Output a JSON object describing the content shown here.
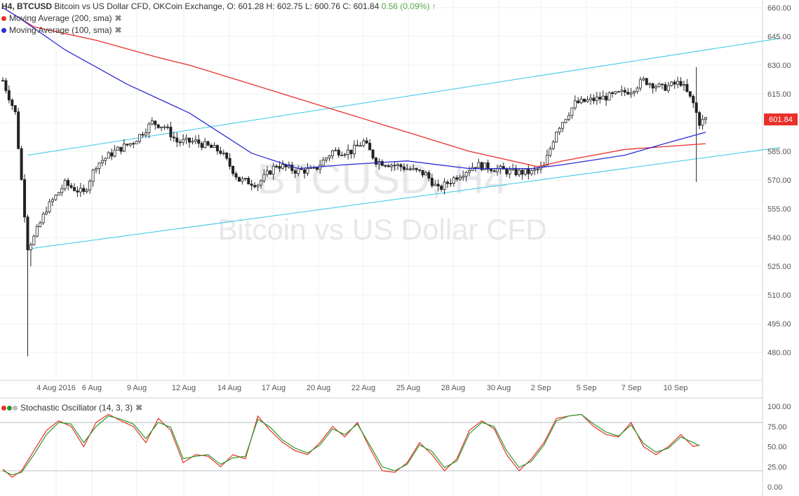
{
  "header": {
    "timeframe": "H4,",
    "symbol": "BTCUSD",
    "description": "Bitcoin vs US Dollar CFD, OKCoin Exchange,",
    "open_label": "O:",
    "open": "601.28",
    "high_label": "H:",
    "high": "602.75",
    "low_label": "L:",
    "low": "600.76",
    "close_label": "C:",
    "close": "601.84",
    "change": "0.56 (0.09%)",
    "change_arrow": "↑",
    "change_color": "#5aa64a"
  },
  "indicators": [
    {
      "label": "Moving Average (200, sma)",
      "color": "#e8302a",
      "remove": "✖"
    },
    {
      "label": "Moving Average (100, sma)",
      "color": "#2b2bd6",
      "remove": "✖"
    }
  ],
  "watermark": {
    "line1": "BTCUSD, H4",
    "line2": "Bitcoin vs US Dollar CFD"
  },
  "price_badge": {
    "value": "601.84",
    "color": "#e8302a"
  },
  "oscillator": {
    "label": "Stochastic Oscillator (14, 3, 3)",
    "k_color": "#e8302a",
    "d_color": "#2a9a2a",
    "dot_colors": [
      "#e8302a",
      "#2a9a2a",
      "#bbbbbb"
    ]
  },
  "chart_data": [
    {
      "type": "candlestick",
      "title": "BTCUSD, H4",
      "ylim": [
        470,
        660
      ],
      "y_ticks": [
        "660.00",
        "645.00",
        "630.00",
        "615.00",
        "600.00",
        "585.00",
        "570.00",
        "555.00",
        "540.00",
        "525.00",
        "510.00",
        "495.00",
        "480.00"
      ],
      "x_ticks": [
        "4 Aug 2016",
        "6 Aug",
        "9 Aug",
        "12 Aug",
        "14 Aug",
        "17 Aug",
        "20 Aug",
        "22 Aug",
        "25 Aug",
        "28 Aug",
        "30 Aug",
        "2 Sep",
        "5 Sep",
        "7 Sep",
        "10 Sep"
      ],
      "price_anchors": [
        [
          0,
          622
        ],
        [
          4,
          605
        ],
        [
          8,
          535
        ],
        [
          10,
          540
        ],
        [
          14,
          555
        ],
        [
          20,
          568
        ],
        [
          26,
          563
        ],
        [
          30,
          578
        ],
        [
          36,
          585
        ],
        [
          42,
          590
        ],
        [
          48,
          600
        ],
        [
          52,
          598
        ],
        [
          56,
          590
        ],
        [
          62,
          590
        ],
        [
          70,
          585
        ],
        [
          76,
          570
        ],
        [
          82,
          568
        ],
        [
          88,
          578
        ],
        [
          94,
          575
        ],
        [
          100,
          575
        ],
        [
          106,
          585
        ],
        [
          112,
          585
        ],
        [
          116,
          590
        ],
        [
          120,
          580
        ],
        [
          128,
          577
        ],
        [
          136,
          573
        ],
        [
          140,
          565
        ],
        [
          146,
          572
        ],
        [
          152,
          578
        ],
        [
          158,
          576
        ],
        [
          164,
          574
        ],
        [
          170,
          574
        ],
        [
          174,
          577
        ],
        [
          178,
          596
        ],
        [
          184,
          610
        ],
        [
          190,
          612
        ],
        [
          196,
          614
        ],
        [
          202,
          617
        ],
        [
          206,
          622
        ],
        [
          212,
          618
        ],
        [
          218,
          621
        ],
        [
          222,
          610
        ],
        [
          224,
          600
        ],
        [
          226,
          601.84
        ]
      ],
      "series": [
        {
          "name": "Moving Average (200, sma)",
          "points": [
            [
              0,
              660
            ],
            [
              10,
              650
            ],
            [
              30,
              643
            ],
            [
              50,
              634
            ],
            [
              60,
              630
            ],
            [
              80,
              620
            ],
            [
              100,
              610
            ],
            [
              120,
              600
            ],
            [
              150,
              585
            ],
            [
              172,
              577
            ],
            [
              180,
              580
            ],
            [
              200,
              586
            ],
            [
              226,
              589
            ]
          ]
        },
        {
          "name": "Moving Average (100, sma)",
          "points": [
            [
              0,
              660
            ],
            [
              5,
              655
            ],
            [
              20,
              638
            ],
            [
              40,
              620
            ],
            [
              60,
              605
            ],
            [
              80,
              584
            ],
            [
              95,
              576
            ],
            [
              110,
              578
            ],
            [
              130,
              580
            ],
            [
              150,
              576
            ],
            [
              170,
              576
            ],
            [
              180,
              578
            ],
            [
              200,
              583
            ],
            [
              215,
              590
            ],
            [
              226,
              595
            ]
          ]
        }
      ],
      "channel": {
        "upper": [
          [
            8,
            583
          ],
          [
            250,
            644
          ]
        ],
        "lower": [
          [
            8,
            534
          ],
          [
            250,
            587
          ]
        ]
      }
    },
    {
      "type": "line",
      "title": "Stochastic Oscillator (14, 3, 3)",
      "ylim": [
        0,
        100
      ],
      "y_ticks": [
        "100.00",
        "75.00",
        "50.00",
        "25.00",
        "0.00"
      ],
      "levels": [
        80,
        20
      ],
      "series": [
        {
          "name": "%K",
          "points": [
            [
              0,
              22
            ],
            [
              3,
              12
            ],
            [
              6,
              20
            ],
            [
              10,
              45
            ],
            [
              14,
              70
            ],
            [
              18,
              82
            ],
            [
              22,
              75
            ],
            [
              26,
              50
            ],
            [
              30,
              80
            ],
            [
              34,
              90
            ],
            [
              38,
              82
            ],
            [
              42,
              75
            ],
            [
              46,
              55
            ],
            [
              50,
              85
            ],
            [
              54,
              70
            ],
            [
              58,
              30
            ],
            [
              62,
              40
            ],
            [
              66,
              38
            ],
            [
              70,
              25
            ],
            [
              74,
              40
            ],
            [
              78,
              35
            ],
            [
              82,
              88
            ],
            [
              86,
              70
            ],
            [
              90,
              55
            ],
            [
              94,
              45
            ],
            [
              98,
              40
            ],
            [
              102,
              55
            ],
            [
              106,
              75
            ],
            [
              110,
              62
            ],
            [
              114,
              80
            ],
            [
              118,
              48
            ],
            [
              122,
              20
            ],
            [
              126,
              18
            ],
            [
              130,
              30
            ],
            [
              134,
              55
            ],
            [
              138,
              40
            ],
            [
              142,
              20
            ],
            [
              146,
              35
            ],
            [
              150,
              70
            ],
            [
              154,
              82
            ],
            [
              158,
              72
            ],
            [
              162,
              40
            ],
            [
              166,
              20
            ],
            [
              170,
              35
            ],
            [
              174,
              55
            ],
            [
              178,
              85
            ],
            [
              182,
              88
            ],
            [
              186,
              90
            ],
            [
              190,
              75
            ],
            [
              194,
              65
            ],
            [
              198,
              62
            ],
            [
              202,
              80
            ],
            [
              206,
              50
            ],
            [
              210,
              40
            ],
            [
              214,
              50
            ],
            [
              218,
              65
            ],
            [
              222,
              50
            ],
            [
              224,
              52
            ]
          ]
        },
        {
          "name": "%D",
          "points": [
            [
              0,
              20
            ],
            [
              3,
              15
            ],
            [
              6,
              18
            ],
            [
              10,
              40
            ],
            [
              14,
              65
            ],
            [
              18,
              80
            ],
            [
              22,
              78
            ],
            [
              26,
              55
            ],
            [
              30,
              75
            ],
            [
              34,
              88
            ],
            [
              38,
              84
            ],
            [
              42,
              78
            ],
            [
              46,
              60
            ],
            [
              50,
              80
            ],
            [
              54,
              74
            ],
            [
              58,
              35
            ],
            [
              62,
              38
            ],
            [
              66,
              40
            ],
            [
              70,
              28
            ],
            [
              74,
              36
            ],
            [
              78,
              38
            ],
            [
              82,
              84
            ],
            [
              86,
              74
            ],
            [
              90,
              58
            ],
            [
              94,
              48
            ],
            [
              98,
              42
            ],
            [
              102,
              52
            ],
            [
              106,
              72
            ],
            [
              110,
              65
            ],
            [
              114,
              78
            ],
            [
              118,
              52
            ],
            [
              122,
              25
            ],
            [
              126,
              20
            ],
            [
              130,
              28
            ],
            [
              134,
              52
            ],
            [
              138,
              44
            ],
            [
              142,
              24
            ],
            [
              146,
              32
            ],
            [
              150,
              66
            ],
            [
              154,
              80
            ],
            [
              158,
              75
            ],
            [
              162,
              45
            ],
            [
              166,
              24
            ],
            [
              170,
              32
            ],
            [
              174,
              52
            ],
            [
              178,
              82
            ],
            [
              182,
              88
            ],
            [
              186,
              90
            ],
            [
              190,
              78
            ],
            [
              194,
              68
            ],
            [
              198,
              63
            ],
            [
              202,
              77
            ],
            [
              206,
              54
            ],
            [
              210,
              43
            ],
            [
              214,
              48
            ],
            [
              218,
              62
            ],
            [
              222,
              55
            ],
            [
              224,
              51
            ]
          ]
        }
      ]
    }
  ]
}
